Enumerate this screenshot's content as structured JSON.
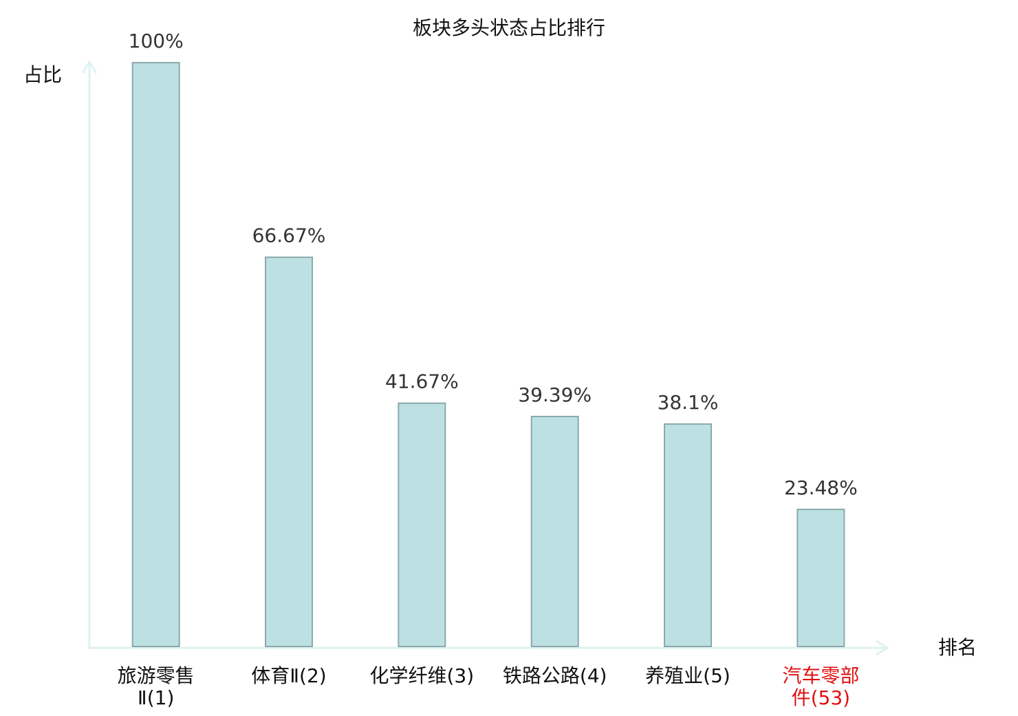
{
  "chart_data": {
    "type": "bar",
    "title": "板块多头状态占比排行",
    "y_label": "占比",
    "x_label": "排名",
    "categories": [
      "旅游零售\nⅡ(1)",
      "体育Ⅱ(2)",
      "化学纤维(3)",
      "铁路公路(4)",
      "养殖业(5)",
      "汽车零部\n件(53)"
    ],
    "category_colors": [
      "#111111",
      "#111111",
      "#111111",
      "#111111",
      "#111111",
      "#e01010"
    ],
    "values": [
      100,
      66.67,
      41.67,
      39.39,
      38.1,
      23.48
    ],
    "value_labels": [
      "100%",
      "66.67%",
      "41.67%",
      "39.39%",
      "38.1%",
      "23.48%"
    ],
    "color": "#bde0e3",
    "edge_color": "#8aa9aa",
    "axis_color": "#dff2ef",
    "ylim": [
      0,
      100
    ]
  }
}
